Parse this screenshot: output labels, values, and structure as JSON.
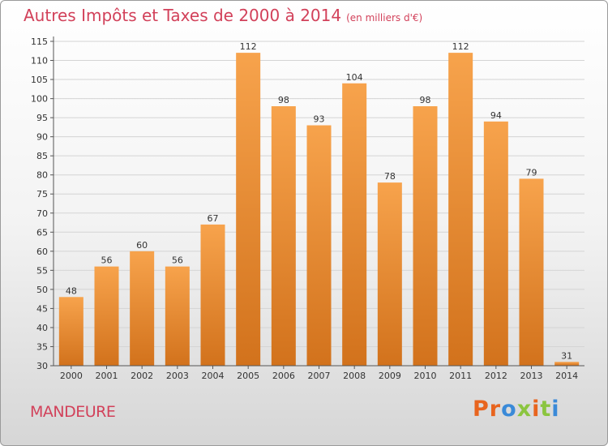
{
  "title": "Autres Impôts et Taxes de 2000 à 2014",
  "unit": "(en milliers d'€)",
  "commune": "MANDEURE",
  "logo": {
    "letters": [
      "P",
      "r",
      "o",
      "x",
      "i",
      "t",
      "i"
    ],
    "colors": [
      "#e8641e",
      "#e8641e",
      "#3a8ad8",
      "#8bc53f",
      "#e8641e",
      "#8bc53f",
      "#3a8ad8"
    ]
  },
  "colors": {
    "bar_top": "#f7a34c",
    "bar_bottom": "#d2721c",
    "accent": "#d2415a"
  },
  "chart_data": {
    "type": "bar",
    "categories": [
      "2000",
      "2001",
      "2002",
      "2003",
      "2004",
      "2005",
      "2006",
      "2007",
      "2008",
      "2009",
      "2010",
      "2011",
      "2012",
      "2013",
      "2014"
    ],
    "values": [
      48,
      56,
      60,
      56,
      67,
      112,
      98,
      93,
      104,
      78,
      98,
      112,
      94,
      79,
      31
    ],
    "ylim": [
      30,
      115
    ],
    "yticks": [
      30,
      35,
      40,
      45,
      50,
      55,
      60,
      65,
      70,
      75,
      80,
      85,
      90,
      95,
      100,
      105,
      110,
      115
    ],
    "grid": true
  }
}
